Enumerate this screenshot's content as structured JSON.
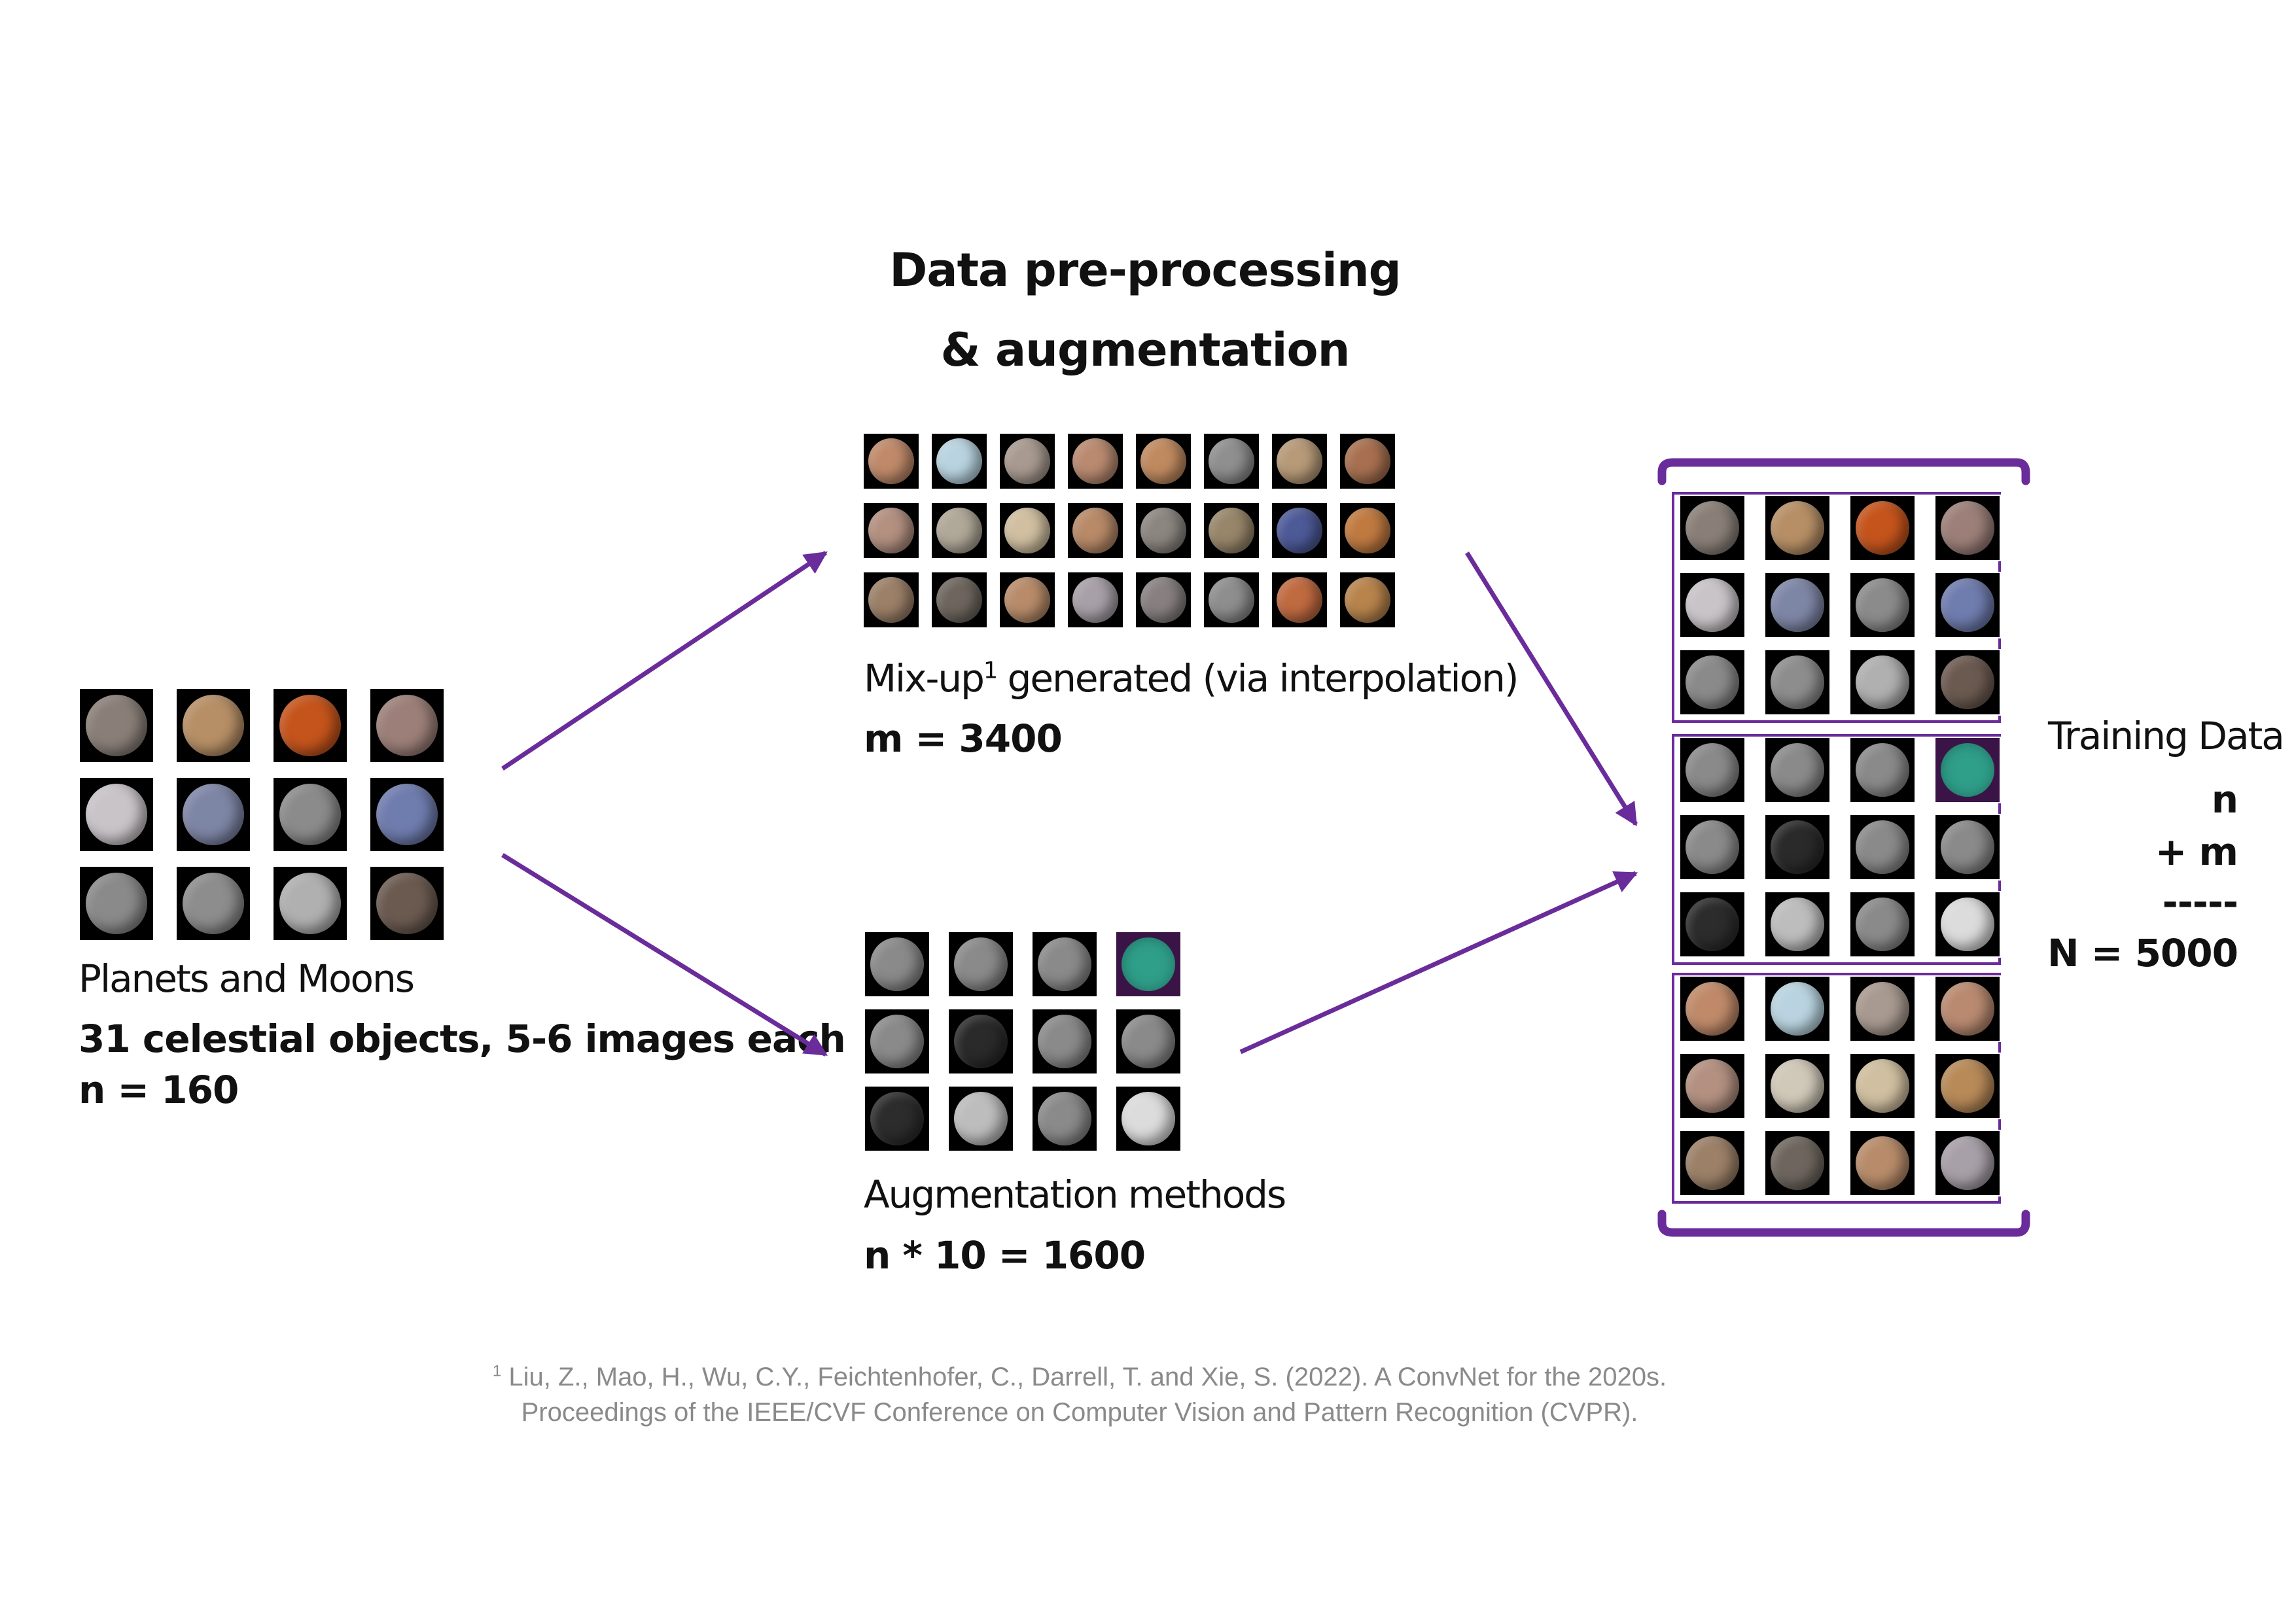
{
  "title": {
    "line1": "Data pre-processing",
    "line2": "& augmentation"
  },
  "input": {
    "label": "Planets and Moons",
    "desc": "31 celestial objects, 5-6 images each",
    "count": "n = 160",
    "thumbs": [
      "#8a7f78",
      "#b78f66",
      "#c5541c",
      "#9c7f78",
      "#c9c4c8",
      "#7e86a6",
      "#8b8b8b",
      "#6f7cae",
      "#8a8a8a",
      "#8d8d8d",
      "#b0b0b0",
      "#6b5a50"
    ]
  },
  "mixup": {
    "label_pre": "Mix-up",
    "label_sup": "1",
    "label_post": " generated (via interpolation)",
    "count": "m = 3400",
    "thumbs": [
      "#c08a6a",
      "#b9d4e0",
      "#a89a90",
      "#b98a70",
      "#c08a60",
      "#8f8f8f",
      "#b79a78",
      "#a87050",
      "#b39080",
      "#b0a898",
      "#d0bfa0",
      "#b88a68",
      "#8c8680",
      "#98866a",
      "#4d5a98",
      "#c07a40",
      "#9c8068",
      "#6e665e",
      "#b88c6a",
      "#a8a0a8",
      "#888080",
      "#8e8e8e",
      "#c06a40",
      "#b8844c"
    ]
  },
  "augment": {
    "label": "Augmentation methods",
    "count": "n * 10 = 1600",
    "thumbs": [
      "#8a8a8a",
      "#8a8a8a",
      "#8a8a8a",
      "#2f9f8a",
      "#8a8a8a",
      "#2a2a2a",
      "#8a8a8a",
      "#8a8a8a",
      "#2c2c2c",
      "#bdbdbd",
      "#8a8a8a",
      "#dcdcdc"
    ]
  },
  "training": {
    "label": "Training Data",
    "line_n": "n",
    "line_m": "+ m",
    "line_sep": "-----",
    "line_total": "N = 5000",
    "group1": [
      "#8a7f78",
      "#b78f66",
      "#c5541c",
      "#9c7f78",
      "#c9c4c8",
      "#7e86a6",
      "#8b8b8b",
      "#6f7cae",
      "#8a8a8a",
      "#8d8d8d",
      "#b0b0b0",
      "#6b5a50"
    ],
    "group2": [
      "#8a8a8a",
      "#8a8a8a",
      "#8a8a8a",
      "#2f9f8a",
      "#8a8a8a",
      "#2a2a2a",
      "#8a8a8a",
      "#8a8a8a",
      "#2c2c2c",
      "#bdbdbd",
      "#8a8a8a",
      "#dcdcdc"
    ],
    "group3": [
      "#c08a6a",
      "#b9d4e0",
      "#a89a90",
      "#b98a70",
      "#b39080",
      "#d0c8b8",
      "#d0bfa0",
      "#b88a58",
      "#9c8068",
      "#6e665e",
      "#b88c6a",
      "#a8a0a8"
    ]
  },
  "footnote": {
    "sup": "1",
    "line1": " Liu, Z., Mao, H., Wu, C.Y., Feichtenhofer, C., Darrell, T. and Xie, S. (2022). A ConvNet for the 2020s.",
    "line2": "Proceedings of the IEEE/CVF Conference on Computer Vision and Pattern Recognition (CVPR)."
  },
  "colors": {
    "accent": "#6a2c9a"
  }
}
